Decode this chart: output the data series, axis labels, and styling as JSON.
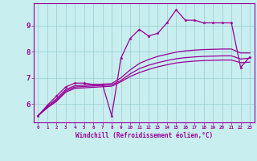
{
  "xlabel": "Windchill (Refroidissement éolien,°C)",
  "background_color": "#c8eef0",
  "line_color": "#990099",
  "grid_color": "#99cccc",
  "xlim": [
    -0.5,
    23.5
  ],
  "ylim": [
    5.3,
    9.85
  ],
  "xtick_labels": [
    "0",
    "1",
    "2",
    "3",
    "4",
    "5",
    "6",
    "7",
    "8",
    "9",
    "10",
    "11",
    "12",
    "13",
    "14",
    "15",
    "16",
    "17",
    "18",
    "19",
    "20",
    "21",
    "22",
    "23"
  ],
  "ytick_labels": [
    "6",
    "7",
    "8",
    "9"
  ],
  "ytick_values": [
    6,
    7,
    8,
    9
  ],
  "series": [
    {
      "x": [
        0,
        1,
        2,
        3,
        4,
        5,
        6,
        7,
        8,
        9,
        10,
        11,
        12,
        13,
        14,
        15,
        16,
        17,
        18,
        19,
        20,
        21,
        22,
        23
      ],
      "y": [
        5.55,
        5.95,
        6.3,
        6.65,
        6.8,
        6.8,
        6.75,
        6.75,
        5.55,
        7.75,
        8.5,
        8.85,
        8.6,
        8.7,
        9.1,
        9.6,
        9.2,
        9.2,
        9.1,
        9.1,
        9.1,
        9.1,
        7.4,
        7.8
      ],
      "marker": "*",
      "lw": 0.9
    },
    {
      "x": [
        0,
        1,
        2,
        3,
        4,
        5,
        6,
        7,
        8,
        9,
        10,
        11,
        12,
        13,
        14,
        15,
        16,
        17,
        18,
        19,
        20,
        21,
        22,
        23
      ],
      "y": [
        5.55,
        5.9,
        6.2,
        6.55,
        6.7,
        6.72,
        6.74,
        6.76,
        6.78,
        7.0,
        7.3,
        7.55,
        7.7,
        7.82,
        7.9,
        7.98,
        8.03,
        8.06,
        8.08,
        8.09,
        8.1,
        8.1,
        7.95,
        7.95
      ],
      "marker": null,
      "lw": 0.9
    },
    {
      "x": [
        0,
        1,
        2,
        3,
        4,
        5,
        6,
        7,
        8,
        9,
        10,
        11,
        12,
        13,
        14,
        15,
        16,
        17,
        18,
        19,
        20,
        21,
        22,
        23
      ],
      "y": [
        5.55,
        5.88,
        6.15,
        6.5,
        6.65,
        6.67,
        6.69,
        6.71,
        6.73,
        6.9,
        7.15,
        7.35,
        7.48,
        7.58,
        7.66,
        7.73,
        7.77,
        7.8,
        7.82,
        7.83,
        7.84,
        7.84,
        7.72,
        7.75
      ],
      "marker": null,
      "lw": 0.9
    },
    {
      "x": [
        0,
        1,
        2,
        3,
        4,
        5,
        6,
        7,
        8,
        9,
        10,
        11,
        12,
        13,
        14,
        15,
        16,
        17,
        18,
        19,
        20,
        21,
        22,
        23
      ],
      "y": [
        5.55,
        5.85,
        6.1,
        6.45,
        6.6,
        6.62,
        6.64,
        6.66,
        6.68,
        6.85,
        7.05,
        7.2,
        7.32,
        7.42,
        7.5,
        7.57,
        7.61,
        7.64,
        7.66,
        7.67,
        7.68,
        7.68,
        7.58,
        7.6
      ],
      "marker": null,
      "lw": 0.9
    }
  ]
}
